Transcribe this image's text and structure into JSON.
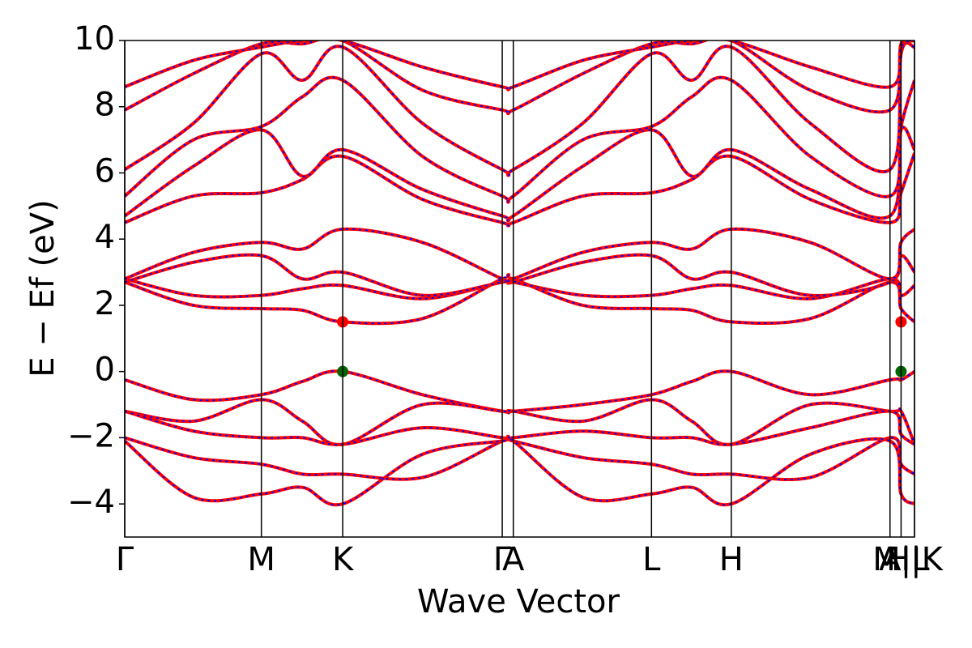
{
  "chart_data": {
    "type": "line",
    "xlabel": "Wave Vector",
    "ylabel": "E − Ef (eV)",
    "xlim": [
      0,
      1
    ],
    "ylim": [
      -5,
      10
    ],
    "xticks": [
      {
        "value": 0,
        "label": "Γ"
      },
      {
        "value": 0.173,
        "label": "M"
      },
      {
        "value": 0.276,
        "label": "K"
      },
      {
        "value": 0.478,
        "label": "Γ"
      },
      {
        "value": 0.492,
        "label": "A"
      },
      {
        "value": 0.667,
        "label": "L"
      },
      {
        "value": 0.768,
        "label": "H"
      },
      {
        "value": 0.969,
        "label": "A"
      },
      {
        "value": 0.983,
        "label": "M|L"
      },
      {
        "value": 1.0,
        "label": "H|K"
      }
    ],
    "yticks": [
      {
        "value": -4,
        "label": "−4"
      },
      {
        "value": -2,
        "label": "−2"
      },
      0,
      2,
      4,
      6,
      8,
      10
    ],
    "dash_color": "#0000ff",
    "x": [
      0,
      0.087,
      0.173,
      0.225,
      0.276,
      0.377,
      0.478,
      0.492,
      0.58,
      0.667,
      0.718,
      0.768,
      0.868,
      0.969,
      0.983,
      1.0
    ],
    "series": [
      {
        "color": "#ff0000",
        "values": [
          -0.25,
          -0.85,
          -0.7,
          -0.3,
          0,
          -0.7,
          -1.2,
          -1.2,
          -1.0,
          -0.7,
          -0.3,
          0,
          -0.7,
          -0.25,
          -0.25,
          0
        ]
      },
      {
        "color": "#ff0000",
        "values": [
          -1.2,
          -1.5,
          -0.85,
          -1.5,
          -2.2,
          -1.0,
          -1.2,
          -1.2,
          -1.5,
          -0.85,
          -1.5,
          -2.2,
          -1.0,
          -1.2,
          -1.2,
          -2.2
        ]
      },
      {
        "color": "#ff0000",
        "values": [
          -1.2,
          -1.8,
          -2.0,
          -2.0,
          -2.2,
          -1.7,
          -2.0,
          -2.0,
          -1.8,
          -2.0,
          -2.0,
          -2.2,
          -1.7,
          -1.2,
          -1.9,
          -2.2
        ]
      },
      {
        "color": "#ff0000",
        "values": [
          -2.0,
          -2.6,
          -2.8,
          -3.1,
          -3.1,
          -3.2,
          -2.1,
          -2.1,
          -2.6,
          -2.8,
          -3.1,
          -3.1,
          -3.2,
          -2.0,
          -2.8,
          -3.1
        ]
      },
      {
        "color": "#ff0000",
        "values": [
          -2.1,
          -3.8,
          -3.7,
          -3.5,
          -4.0,
          -2.5,
          -2.1,
          -2.1,
          -3.8,
          -3.7,
          -3.5,
          -4.0,
          -2.5,
          -2.1,
          -3.7,
          -4.0
        ]
      },
      {
        "color": "#ff0000",
        "values": [
          2.7,
          2.0,
          1.9,
          1.85,
          1.5,
          1.6,
          2.8,
          2.8,
          2.0,
          1.9,
          1.85,
          1.5,
          1.6,
          2.7,
          1.9,
          1.5
        ]
      },
      {
        "color": "#ff0000",
        "values": [
          2.8,
          2.3,
          2.3,
          2.5,
          2.6,
          2.2,
          2.7,
          2.7,
          2.3,
          2.3,
          2.5,
          2.6,
          2.2,
          2.8,
          2.3,
          2.6
        ]
      },
      {
        "color": "#ff0000",
        "values": [
          2.7,
          3.3,
          3.5,
          2.8,
          3.0,
          2.3,
          2.7,
          2.7,
          3.3,
          3.5,
          2.8,
          3.0,
          2.3,
          2.7,
          3.5,
          3.0
        ]
      },
      {
        "color": "#ff0000",
        "values": [
          2.8,
          3.6,
          3.9,
          3.7,
          4.3,
          3.9,
          2.8,
          2.8,
          3.6,
          3.9,
          3.7,
          4.3,
          3.9,
          2.8,
          3.9,
          4.3
        ]
      },
      {
        "color": "#ff0000",
        "values": [
          4.5,
          5.3,
          5.4,
          5.8,
          6.5,
          5.2,
          4.5,
          4.5,
          5.3,
          5.4,
          5.8,
          6.5,
          5.2,
          4.5,
          5.4,
          6.6
        ]
      },
      {
        "color": "#ff0000",
        "values": [
          4.7,
          6.2,
          7.3,
          5.9,
          6.7,
          5.5,
          4.7,
          4.7,
          6.2,
          7.3,
          5.9,
          6.7,
          5.5,
          4.7,
          7.3,
          6.7
        ]
      },
      {
        "color": "#ff0000",
        "values": [
          5.3,
          7.0,
          7.4,
          8.3,
          8.8,
          6.5,
          5.3,
          5.3,
          7.0,
          7.4,
          8.3,
          8.8,
          6.5,
          5.3,
          7.4,
          8.8
        ]
      },
      {
        "color": "#ff0000",
        "values": [
          6.1,
          7.5,
          9.6,
          8.8,
          9.8,
          7.5,
          6.1,
          6.1,
          7.5,
          9.6,
          8.8,
          9.8,
          7.5,
          6.1,
          9.6,
          9.8
        ]
      },
      {
        "color": "#ff0000",
        "values": [
          7.9,
          9.0,
          9.9,
          9.9,
          10.0,
          8.5,
          7.9,
          7.9,
          9.0,
          9.9,
          9.9,
          10.0,
          8.5,
          7.9,
          9.9,
          10.0
        ]
      },
      {
        "color": "#ff0000",
        "values": [
          8.6,
          9.4,
          9.8,
          10.0,
          10.0,
          9.2,
          8.6,
          8.6,
          9.4,
          9.8,
          10.0,
          10.0,
          9.2,
          8.6,
          9.8,
          10.0
        ]
      }
    ],
    "points": [
      {
        "x": 0.276,
        "y": 1.5,
        "color": "#ff0000"
      },
      {
        "x": 0.276,
        "y": 0,
        "color": "#006400"
      },
      {
        "x": 0.983,
        "y": 1.5,
        "color": "#ff0000"
      },
      {
        "x": 0.983,
        "y": 0,
        "color": "#006400"
      }
    ]
  }
}
